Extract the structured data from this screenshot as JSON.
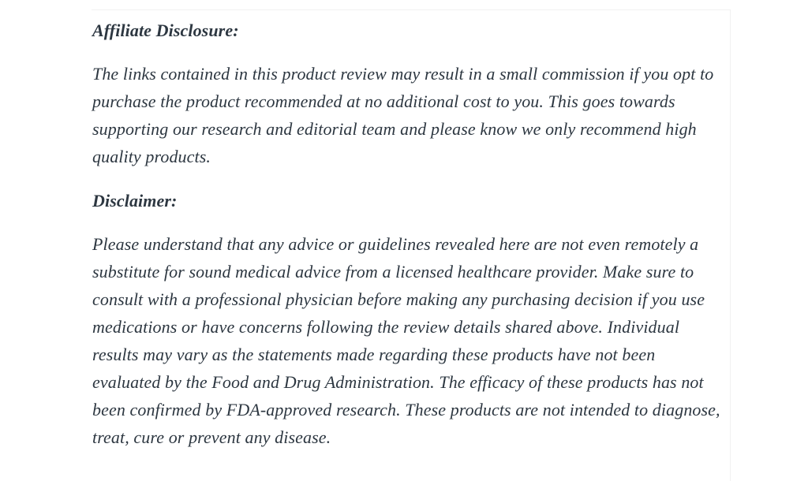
{
  "page": {
    "background_color": "#ffffff",
    "text_color": "#2d3741",
    "border_color": "#f1f1f1"
  },
  "content": {
    "sections": [
      {
        "heading": "Affiliate Disclosure:",
        "body": "The links contained in this product review may result in a small commission if you opt to purchase the product recommended at no additional cost to you. This goes towards supporting our research and editorial team and please know we only recommend high quality products."
      },
      {
        "heading": "Disclaimer:",
        "body": "Please understand that any advice or guidelines revealed here are not even remotely a substitute for sound medical advice from a licensed healthcare provider. Make sure to consult with a professional physician before making any purchasing decision if you use medications or have concerns following the review details shared above. Individual results may vary as the statements made regarding these products have not been evaluated by the Food and Drug Administration. The efficacy of these products has not been confirmed by FDA-approved research. These products are not intended to diagnose, treat, cure or prevent any disease."
      }
    ]
  }
}
